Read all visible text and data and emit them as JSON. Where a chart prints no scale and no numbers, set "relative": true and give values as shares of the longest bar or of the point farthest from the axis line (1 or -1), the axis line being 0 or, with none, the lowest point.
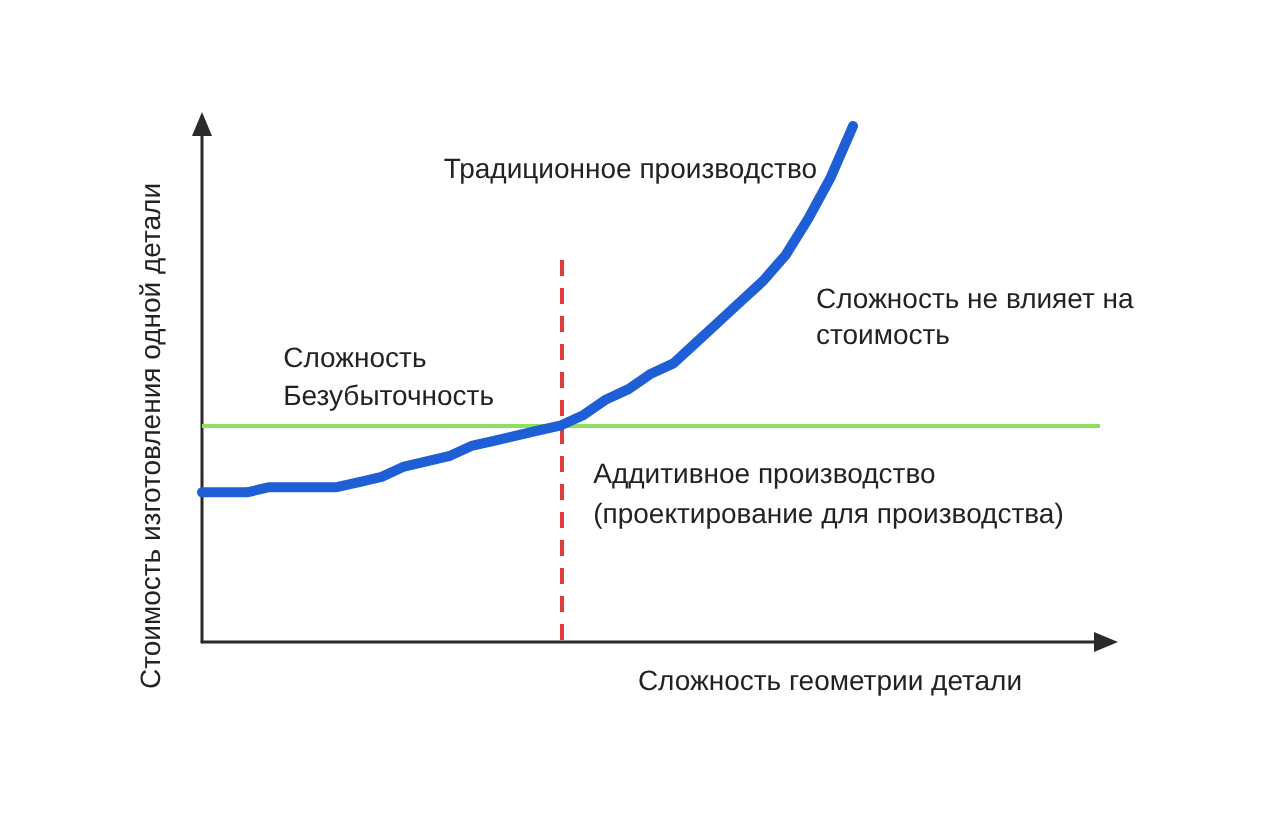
{
  "chart_data": {
    "type": "line",
    "relative": true,
    "xlabel": "Сложность геометрии детали",
    "ylabel": "Стоимость изготовления одной детали",
    "categories": [
      null,
      null,
      null,
      null,
      null,
      null,
      null,
      null,
      null,
      null,
      null,
      null,
      null,
      null,
      null,
      null,
      null,
      null,
      null,
      null,
      null,
      null,
      null,
      null,
      null,
      null,
      null,
      null,
      null,
      null,
      null,
      null,
      null,
      null,
      null,
      null,
      null,
      null,
      null,
      null,
      null
    ],
    "series": [
      {
        "name": "Традиционное производство",
        "color": "#1e5fd6",
        "values": [
          0.29,
          0.29,
          0.29,
          0.3,
          0.3,
          0.3,
          0.3,
          0.31,
          0.32,
          0.34,
          0.35,
          0.36,
          0.38,
          0.39,
          0.4,
          0.41,
          0.42,
          0.44,
          0.47,
          0.49,
          0.52,
          0.54,
          0.58,
          0.62,
          0.66,
          0.7,
          0.75,
          0.82,
          0.9,
          1,
          null,
          null,
          null,
          null,
          null,
          null,
          null,
          null,
          null,
          null,
          null
        ]
      }
    ],
    "ref_lines": [
      {
        "axis": "y",
        "value": 0.42,
        "label": "Аддитивное производство (проектирование для производства)",
        "color": "#90e060",
        "line_style": "solid"
      }
    ],
    "annotations": [
      "Сложность не влияет на стоимость",
      "Сложность Безубыточность"
    ],
    "marker": "none",
    "line_style": "solid",
    "grid": false,
    "legend": false
  }
}
